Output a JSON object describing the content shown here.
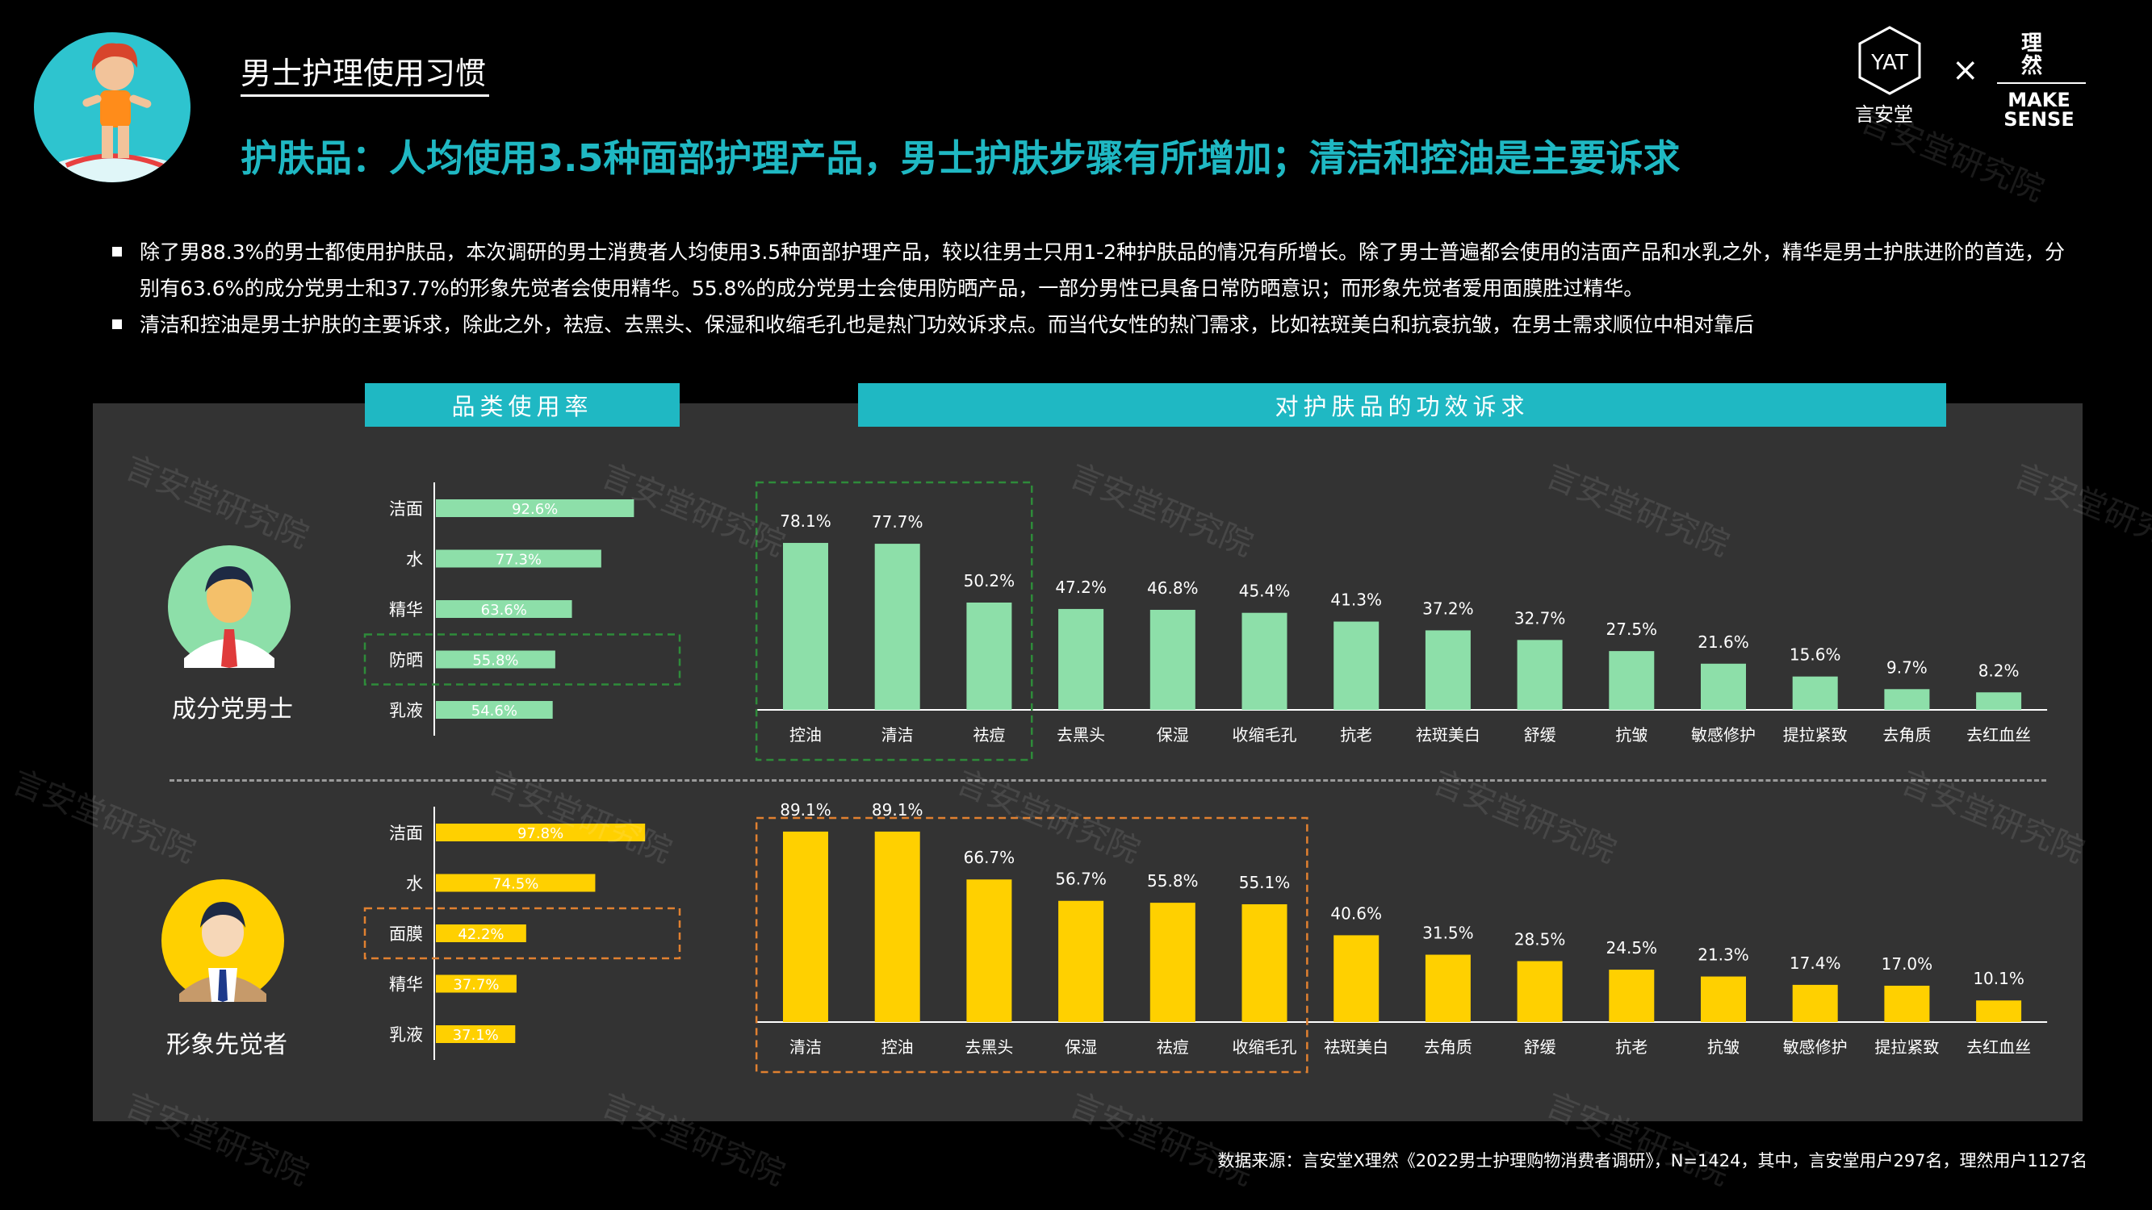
{
  "header": {
    "section_title": "男士护理使用习惯",
    "headline": "护肤品：人均使用3.5种面部护理产品，男士护肤步骤有所增加；清洁和控油是主要诉求",
    "logo_left": "言安堂",
    "logo_times": "×",
    "logo_right_cn": "理\n然",
    "logo_right_en": "MAKE\nSENSE"
  },
  "bullets": [
    "除了男88.3%的男士都使用护肤品，本次调研的男士消费者人均使用3.5种面部护理产品，较以往男士只用1-2种护肤品的情况有所增长。除了男士普遍都会使用的洁面产品和水乳之外，精华是男士护肤进阶的首选，分别有63.6%的成分党男士和37.7%的形象先觉者会使用精华。55.8%的成分党男士会使用防晒产品，一部分男性已具备日常防晒意识；而形象先觉者爱用面膜胜过精华。",
    "清洁和控油是男士护肤的主要诉求，除此之外，祛痘、去黑头、保湿和收缩毛孔也是热门功效诉求点。而当代女性的热门需求，比如祛斑美白和抗衰抗皱，在男士需求顺位中相对靠后"
  ],
  "panel": {
    "left_header": "品类使用率",
    "right_header": "对护肤品的功效诉求"
  },
  "personas": [
    {
      "label": "成分党男士"
    },
    {
      "label": "形象先觉者"
    }
  ],
  "watermark": "言安堂研究院",
  "source": "数据来源：言安堂X理然《2022男士护理购物消费者调研》，N=1424，其中，言安堂用户297名，理然用户1127名",
  "colors": {
    "accent": "#1fb8c3",
    "green": "#8ddfa9",
    "yellow": "#ffd000",
    "green_dash": "#2e8b3a",
    "orange_dash": "#e08030"
  },
  "chart_data": [
    {
      "type": "bar",
      "orientation": "horizontal",
      "group": "成分党男士",
      "categories": [
        "洁面",
        "水",
        "精华",
        "防晒",
        "乳液"
      ],
      "values": [
        92.6,
        77.3,
        63.6,
        55.8,
        54.6
      ],
      "labels": [
        "92.6%",
        "77.3%",
        "63.6%",
        "55.8%",
        "54.6%"
      ],
      "highlight": [
        "防晒"
      ],
      "xlim": [
        0,
        100
      ]
    },
    {
      "type": "bar",
      "group": "成分党男士",
      "categories": [
        "控油",
        "清洁",
        "祛痘",
        "去黑头",
        "保湿",
        "收缩毛孔",
        "抗老",
        "祛斑美白",
        "舒缓",
        "抗皱",
        "敏感修护",
        "提拉紧致",
        "去角质",
        "去红血丝"
      ],
      "values": [
        78.1,
        77.7,
        50.2,
        47.2,
        46.8,
        45.4,
        41.3,
        37.2,
        32.7,
        27.5,
        21.6,
        15.6,
        9.7,
        8.2
      ],
      "labels": [
        "78.1%",
        "77.7%",
        "50.2%",
        "47.2%",
        "46.8%",
        "45.4%",
        "41.3%",
        "37.2%",
        "32.7%",
        "27.5%",
        "21.6%",
        "15.6%",
        "9.7%",
        "8.2%"
      ],
      "highlight_top": 3,
      "ylim": [
        0,
        100
      ]
    },
    {
      "type": "bar",
      "orientation": "horizontal",
      "group": "形象先觉者",
      "categories": [
        "洁面",
        "水",
        "面膜",
        "精华",
        "乳液"
      ],
      "values": [
        97.8,
        74.5,
        42.2,
        37.7,
        37.1
      ],
      "labels": [
        "97.8%",
        "74.5%",
        "42.2%",
        "37.7%",
        "37.1%"
      ],
      "highlight": [
        "面膜"
      ],
      "xlim": [
        0,
        100
      ]
    },
    {
      "type": "bar",
      "group": "形象先觉者",
      "categories": [
        "清洁",
        "控油",
        "去黑头",
        "保湿",
        "祛痘",
        "收缩毛孔",
        "祛斑美白",
        "去角质",
        "舒缓",
        "抗老",
        "抗皱",
        "敏感修护",
        "提拉紧致",
        "去红血丝"
      ],
      "values": [
        89.1,
        89.1,
        66.7,
        56.7,
        55.8,
        55.1,
        40.6,
        31.5,
        28.5,
        24.5,
        21.3,
        17.4,
        17.0,
        10.1
      ],
      "labels": [
        "89.1%",
        "89.1%",
        "66.7%",
        "56.7%",
        "55.8%",
        "55.1%",
        "40.6%",
        "31.5%",
        "28.5%",
        "24.5%",
        "21.3%",
        "17.4%",
        "17.0%",
        "10.1%"
      ],
      "highlight_top": 6,
      "ylim": [
        0,
        100
      ]
    }
  ]
}
